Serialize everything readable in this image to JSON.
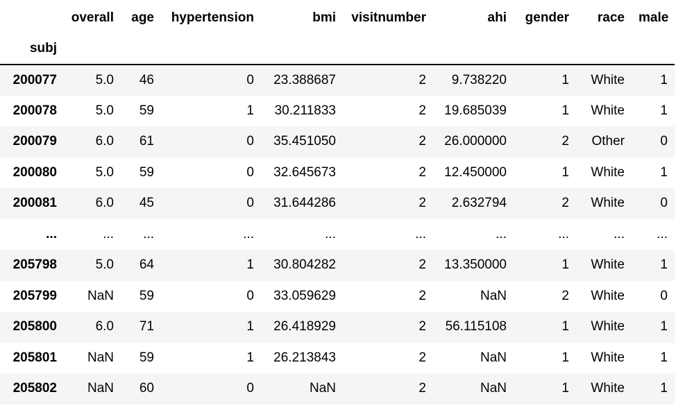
{
  "table": {
    "index_name": "subj",
    "columns": [
      "overall",
      "age",
      "hypertension",
      "bmi",
      "visitnumber",
      "ahi",
      "gender",
      "race",
      "male"
    ],
    "rows": [
      {
        "index": "200077",
        "cells": [
          "5.0",
          "46",
          "0",
          "23.388687",
          "2",
          "9.738220",
          "1",
          "White",
          "1"
        ]
      },
      {
        "index": "200078",
        "cells": [
          "5.0",
          "59",
          "1",
          "30.211833",
          "2",
          "19.685039",
          "1",
          "White",
          "1"
        ]
      },
      {
        "index": "200079",
        "cells": [
          "6.0",
          "61",
          "0",
          "35.451050",
          "2",
          "26.000000",
          "2",
          "Other",
          "0"
        ]
      },
      {
        "index": "200080",
        "cells": [
          "5.0",
          "59",
          "0",
          "32.645673",
          "2",
          "12.450000",
          "1",
          "White",
          "1"
        ]
      },
      {
        "index": "200081",
        "cells": [
          "6.0",
          "45",
          "0",
          "31.644286",
          "2",
          "2.632794",
          "2",
          "White",
          "0"
        ]
      },
      {
        "index": "...",
        "cells": [
          "...",
          "...",
          "...",
          "...",
          "...",
          "...",
          "...",
          "...",
          "..."
        ]
      },
      {
        "index": "205798",
        "cells": [
          "5.0",
          "64",
          "1",
          "30.804282",
          "2",
          "13.350000",
          "1",
          "White",
          "1"
        ]
      },
      {
        "index": "205799",
        "cells": [
          "NaN",
          "59",
          "0",
          "33.059629",
          "2",
          "NaN",
          "2",
          "White",
          "0"
        ]
      },
      {
        "index": "205800",
        "cells": [
          "6.0",
          "71",
          "1",
          "26.418929",
          "2",
          "56.115108",
          "1",
          "White",
          "1"
        ]
      },
      {
        "index": "205801",
        "cells": [
          "NaN",
          "59",
          "1",
          "26.213843",
          "2",
          "NaN",
          "1",
          "White",
          "1"
        ]
      },
      {
        "index": "205802",
        "cells": [
          "NaN",
          "60",
          "0",
          "NaN",
          "2",
          "NaN",
          "1",
          "White",
          "1"
        ]
      }
    ]
  }
}
